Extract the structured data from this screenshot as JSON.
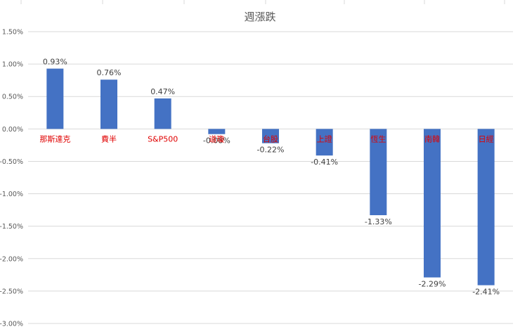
{
  "chart_data": {
    "type": "bar",
    "title": "週漲跌",
    "categories": [
      "那斯達克",
      "費半",
      "S&P500",
      "道瓊",
      "台股",
      "上證",
      "恆生",
      "南韓",
      "日經"
    ],
    "values": [
      0.93,
      0.76,
      0.47,
      -0.08,
      -0.22,
      -0.41,
      -1.33,
      -2.29,
      -2.41
    ],
    "value_labels": [
      "0.93%",
      "0.76%",
      "0.47%",
      "-0.08%",
      "-0.22%",
      "-0.41%",
      "-1.33%",
      "-2.29%",
      "-2.41%"
    ],
    "y_ticks": [
      1.5,
      1.0,
      0.5,
      0.0,
      -0.5,
      -1.0,
      -1.5,
      -2.0,
      -2.5,
      -3.0
    ],
    "y_tick_labels": [
      "1.50%",
      "1.00%",
      "0.50%",
      "0.00%",
      "-0.50%",
      "-1.00%",
      "-1.50%",
      "-2.00%",
      "-2.50%",
      "-3.00%"
    ],
    "ylim": [
      -3.0,
      1.5
    ],
    "grid": true,
    "xlabel": "",
    "ylabel": "",
    "colors": {
      "bar": "#4472C4",
      "category_label": "#E00000",
      "grid": "#D9D9D9",
      "tick_label": "#595959",
      "data_label": "#404040"
    }
  }
}
